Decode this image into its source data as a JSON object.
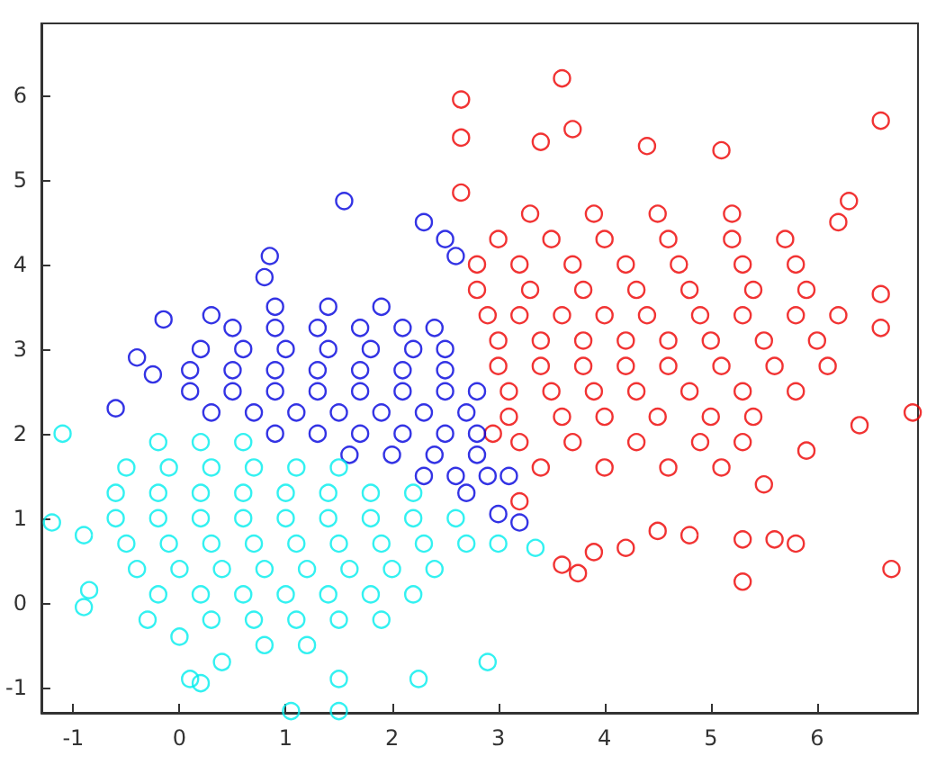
{
  "chart_data": {
    "type": "scatter",
    "marker": "circle",
    "xlim": [
      -1.3,
      6.95
    ],
    "ylim": [
      -1.3,
      6.85
    ],
    "xticks": [
      -1,
      0,
      1,
      2,
      3,
      4,
      5,
      6
    ],
    "yticks": [
      -1,
      0,
      1,
      2,
      3,
      4,
      5,
      6
    ],
    "series": [
      {
        "color": "#ee0000",
        "x": [
          2.65,
          2.65,
          2.65,
          3.6,
          3.7,
          3.4,
          4.4,
          5.1,
          6.6,
          6.3,
          6.2,
          6.6,
          6.6,
          6.9,
          6.7,
          5.3,
          3.75,
          3.6,
          5.6,
          5.8,
          5.3,
          4.5,
          4.2,
          3.9,
          5.9,
          6.4,
          5.5,
          4.8,
          3.2,
          2.95,
          3.3,
          3.9,
          4.5,
          5.2,
          3.0,
          3.5,
          4.0,
          4.6,
          5.2,
          5.7,
          2.8,
          3.2,
          3.7,
          4.2,
          4.7,
          5.3,
          5.8,
          2.8,
          3.3,
          3.8,
          4.3,
          4.8,
          5.4,
          5.9,
          2.9,
          3.2,
          3.6,
          4.0,
          4.4,
          4.9,
          5.3,
          5.8,
          6.2,
          3.0,
          3.4,
          3.8,
          4.2,
          4.6,
          5.0,
          5.5,
          6.0,
          3.0,
          3.4,
          3.8,
          4.2,
          4.6,
          5.1,
          5.6,
          6.1,
          3.1,
          3.5,
          3.9,
          4.3,
          4.8,
          5.3,
          5.8,
          3.1,
          3.6,
          4.0,
          4.5,
          5.0,
          5.4,
          3.2,
          3.7,
          4.3,
          4.9,
          5.3,
          3.4,
          4.0,
          4.6,
          5.1
        ],
        "values": [
          5.95,
          5.5,
          4.85,
          6.2,
          5.6,
          5.45,
          5.4,
          5.35,
          5.7,
          4.75,
          4.5,
          3.65,
          3.25,
          2.25,
          0.4,
          0.25,
          0.35,
          0.45,
          0.75,
          0.7,
          0.75,
          0.85,
          0.65,
          0.6,
          1.8,
          2.1,
          1.4,
          0.8,
          1.2,
          2.0,
          4.6,
          4.6,
          4.6,
          4.6,
          4.3,
          4.3,
          4.3,
          4.3,
          4.3,
          4.3,
          4.0,
          4.0,
          4.0,
          4.0,
          4.0,
          4.0,
          4.0,
          3.7,
          3.7,
          3.7,
          3.7,
          3.7,
          3.7,
          3.7,
          3.4,
          3.4,
          3.4,
          3.4,
          3.4,
          3.4,
          3.4,
          3.4,
          3.4,
          3.1,
          3.1,
          3.1,
          3.1,
          3.1,
          3.1,
          3.1,
          3.1,
          2.8,
          2.8,
          2.8,
          2.8,
          2.8,
          2.8,
          2.8,
          2.8,
          2.5,
          2.5,
          2.5,
          2.5,
          2.5,
          2.5,
          2.5,
          2.2,
          2.2,
          2.2,
          2.2,
          2.2,
          2.2,
          1.9,
          1.9,
          1.9,
          1.9,
          1.9,
          1.6,
          1.6,
          1.6,
          1.6
        ]
      },
      {
        "color": "#0000dd",
        "x": [
          1.55,
          2.3,
          0.85,
          0.8,
          -0.15,
          -0.6,
          -0.25,
          3.2,
          3.0,
          2.7,
          3.1,
          2.5,
          2.6,
          0.3,
          -0.4,
          0.9,
          1.4,
          1.9,
          0.5,
          0.9,
          1.3,
          1.7,
          2.1,
          2.4,
          0.2,
          0.6,
          1.0,
          1.4,
          1.8,
          2.2,
          2.5,
          0.1,
          0.5,
          0.9,
          1.3,
          1.7,
          2.1,
          2.5,
          0.1,
          0.5,
          0.9,
          1.3,
          1.7,
          2.1,
          2.5,
          2.8,
          0.3,
          0.7,
          1.1,
          1.5,
          1.9,
          2.3,
          2.7,
          0.9,
          1.3,
          1.7,
          2.1,
          2.5,
          2.8,
          1.6,
          2.0,
          2.4,
          2.8,
          2.3,
          2.6,
          2.9
        ],
        "values": [
          4.75,
          4.5,
          4.1,
          3.85,
          3.35,
          2.3,
          2.7,
          0.95,
          1.05,
          1.3,
          1.5,
          4.3,
          4.1,
          3.4,
          2.9,
          3.5,
          3.5,
          3.5,
          3.25,
          3.25,
          3.25,
          3.25,
          3.25,
          3.25,
          3.0,
          3.0,
          3.0,
          3.0,
          3.0,
          3.0,
          3.0,
          2.75,
          2.75,
          2.75,
          2.75,
          2.75,
          2.75,
          2.75,
          2.5,
          2.5,
          2.5,
          2.5,
          2.5,
          2.5,
          2.5,
          2.5,
          2.25,
          2.25,
          2.25,
          2.25,
          2.25,
          2.25,
          2.25,
          2.0,
          2.0,
          2.0,
          2.0,
          2.0,
          2.0,
          1.75,
          1.75,
          1.75,
          1.75,
          1.5,
          1.5,
          1.5
        ]
      },
      {
        "color": "#00eeee",
        "x": [
          -1.1,
          -1.2,
          -0.9,
          -0.85,
          -0.9,
          0.1,
          0.2,
          1.05,
          1.5,
          2.25,
          2.9,
          3.35,
          3.0,
          -0.3,
          0.0,
          1.5,
          0.4,
          -0.2,
          0.2,
          0.6,
          -0.5,
          -0.1,
          0.3,
          0.7,
          1.1,
          1.5,
          -0.6,
          -0.2,
          0.2,
          0.6,
          1.0,
          1.4,
          1.8,
          2.2,
          -0.6,
          -0.2,
          0.2,
          0.6,
          1.0,
          1.4,
          1.8,
          2.2,
          2.6,
          -0.5,
          -0.1,
          0.3,
          0.7,
          1.1,
          1.5,
          1.9,
          2.3,
          2.7,
          -0.4,
          0.0,
          0.4,
          0.8,
          1.2,
          1.6,
          2.0,
          2.4,
          -0.2,
          0.2,
          0.6,
          1.0,
          1.4,
          1.8,
          2.2,
          0.3,
          0.7,
          1.1,
          1.5,
          1.9,
          0.8,
          1.2
        ],
        "values": [
          2.0,
          0.95,
          0.8,
          0.15,
          -0.05,
          -0.9,
          -0.95,
          -1.28,
          -1.28,
          -0.9,
          -0.7,
          0.65,
          0.7,
          -0.2,
          -0.4,
          -0.9,
          -0.7,
          1.9,
          1.9,
          1.9,
          1.6,
          1.6,
          1.6,
          1.6,
          1.6,
          1.6,
          1.3,
          1.3,
          1.3,
          1.3,
          1.3,
          1.3,
          1.3,
          1.3,
          1.0,
          1.0,
          1.0,
          1.0,
          1.0,
          1.0,
          1.0,
          1.0,
          1.0,
          0.7,
          0.7,
          0.7,
          0.7,
          0.7,
          0.7,
          0.7,
          0.7,
          0.7,
          0.4,
          0.4,
          0.4,
          0.4,
          0.4,
          0.4,
          0.4,
          0.4,
          0.1,
          0.1,
          0.1,
          0.1,
          0.1,
          0.1,
          0.1,
          -0.2,
          -0.2,
          -0.2,
          -0.2,
          -0.2,
          -0.5,
          -0.5
        ]
      }
    ]
  }
}
